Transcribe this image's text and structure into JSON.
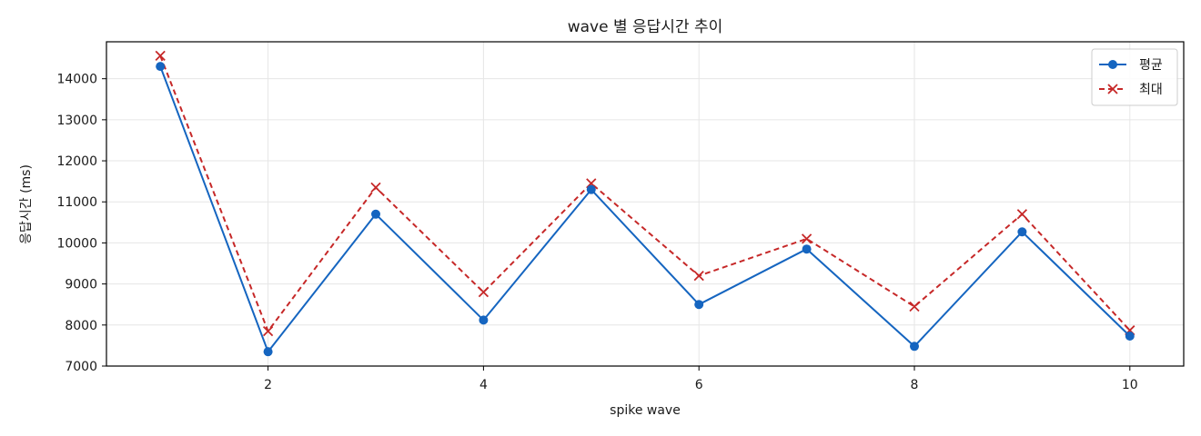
{
  "chart_data": {
    "type": "line",
    "title": "wave 별 응답시간 추이",
    "xlabel": "spike wave",
    "ylabel": "응답시간 (ms)",
    "x": [
      1,
      2,
      3,
      4,
      5,
      6,
      7,
      8,
      9,
      10
    ],
    "xlim": [
      0.5,
      10.5
    ],
    "ylim": [
      7000,
      14900
    ],
    "x_ticks": [
      2,
      4,
      6,
      8,
      10
    ],
    "y_ticks": [
      7000,
      8000,
      9000,
      10000,
      11000,
      12000,
      13000,
      14000
    ],
    "grid": true,
    "legend_position": "top-right",
    "series": [
      {
        "name": "평균",
        "color": "#1565c0",
        "style": "solid",
        "marker": "circle",
        "values": [
          14300,
          7350,
          10700,
          8120,
          11300,
          8500,
          9850,
          7480,
          10270,
          7730
        ]
      },
      {
        "name": "최대",
        "color": "#c62828",
        "style": "dashed",
        "marker": "x",
        "values": [
          14560,
          7850,
          11350,
          8800,
          11450,
          9200,
          10100,
          8450,
          10700,
          7870
        ]
      }
    ]
  }
}
